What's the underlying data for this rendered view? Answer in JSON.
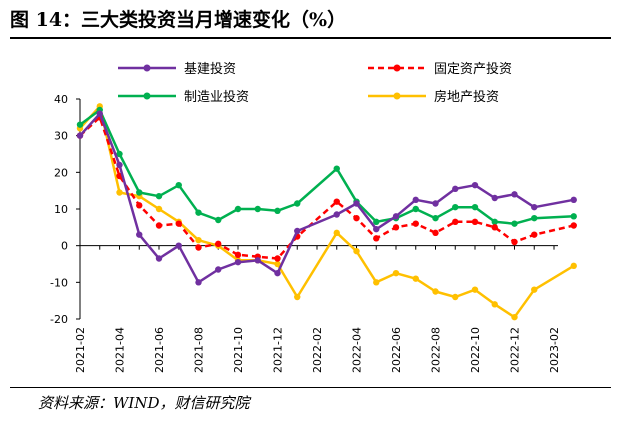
{
  "title": "图 14：三大类投资当月增速变化（%）",
  "source": "资料来源：WIND，财信研究院",
  "chart_data": {
    "type": "line",
    "x": [
      "2021-02",
      "2021-03",
      "2021-04",
      "2021-05",
      "2021-06",
      "2021-07",
      "2021-08",
      "2021-09",
      "2021-10",
      "2021-11",
      "2021-12",
      "2022-01",
      "2022-02",
      "2022-03",
      "2022-04",
      "2022-05",
      "2022-06",
      "2022-07",
      "2022-08",
      "2022-09",
      "2022-10",
      "2022-11",
      "2022-12",
      "2023-01",
      "2023-02"
    ],
    "xticks": [
      "2021-02",
      "2021-04",
      "2021-06",
      "2021-08",
      "2021-10",
      "2021-12",
      "2022-02",
      "2022-04",
      "2022-06",
      "2022-08",
      "2022-10",
      "2022-12",
      "2023-02"
    ],
    "ylim": [
      -20,
      40
    ],
    "yticks": [
      "40",
      "30",
      "20",
      "10",
      "0",
      "-10",
      "-20"
    ],
    "series": [
      {
        "name": "基建投资",
        "color": "#7030A0",
        "style": "solid",
        "points": [
          [
            0,
            30
          ],
          [
            1,
            36
          ],
          [
            2,
            22
          ],
          [
            3,
            3
          ],
          [
            4,
            -3.5
          ],
          [
            5,
            0
          ],
          [
            6,
            -10
          ],
          [
            7,
            -6.5
          ],
          [
            8,
            -4.5
          ],
          [
            9,
            -4
          ],
          [
            10,
            -7.5
          ],
          [
            11,
            4
          ],
          [
            13,
            8.5
          ],
          [
            14,
            11.5
          ],
          [
            15,
            4.5
          ],
          [
            16,
            8
          ],
          [
            17,
            12.5
          ],
          [
            18,
            11.5
          ],
          [
            19,
            15.5
          ],
          [
            20,
            16.5
          ],
          [
            21,
            13
          ],
          [
            22,
            14
          ],
          [
            23,
            10.5
          ],
          [
            25,
            12.5
          ]
        ]
      },
      {
        "name": "固定资产投资",
        "color": "#FF0000",
        "style": "dashed",
        "points": [
          [
            0,
            30
          ],
          [
            1,
            35
          ],
          [
            2,
            19
          ],
          [
            3,
            11
          ],
          [
            4,
            5.5
          ],
          [
            5,
            6
          ],
          [
            6,
            -0.5
          ],
          [
            7,
            0.5
          ],
          [
            8,
            -2.5
          ],
          [
            9,
            -3
          ],
          [
            10,
            -3.5
          ],
          [
            11,
            2.5
          ],
          [
            13,
            12
          ],
          [
            14,
            7.5
          ],
          [
            15,
            2
          ],
          [
            16,
            5
          ],
          [
            17,
            6
          ],
          [
            18,
            3.5
          ],
          [
            19,
            6.5
          ],
          [
            20,
            6.5
          ],
          [
            21,
            5
          ],
          [
            22,
            1
          ],
          [
            23,
            3
          ],
          [
            25,
            5.5
          ]
        ]
      },
      {
        "name": "制造业投资",
        "color": "#00B050",
        "style": "solid",
        "points": [
          [
            0,
            33
          ],
          [
            1,
            37
          ],
          [
            2,
            25
          ],
          [
            3,
            14.5
          ],
          [
            4,
            13.5
          ],
          [
            5,
            16.5
          ],
          [
            6,
            9
          ],
          [
            7,
            7
          ],
          [
            8,
            10
          ],
          [
            9,
            10
          ],
          [
            10,
            9.5
          ],
          [
            11,
            11.5
          ],
          [
            13,
            21
          ],
          [
            14,
            12
          ],
          [
            15,
            6.5
          ],
          [
            16,
            7.5
          ],
          [
            17,
            10
          ],
          [
            18,
            7.5
          ],
          [
            19,
            10.5
          ],
          [
            20,
            10.5
          ],
          [
            21,
            6.5
          ],
          [
            22,
            6
          ],
          [
            23,
            7.5
          ],
          [
            25,
            8
          ]
        ]
      },
      {
        "name": "房地产投资",
        "color": "#FFC000",
        "style": "solid",
        "points": [
          [
            0,
            32
          ],
          [
            1,
            38
          ],
          [
            2,
            14.5
          ],
          [
            3,
            13.5
          ],
          [
            4,
            10
          ],
          [
            5,
            6.5
          ],
          [
            6,
            1.5
          ],
          [
            7,
            0
          ],
          [
            8,
            -4
          ],
          [
            9,
            -4
          ],
          [
            10,
            -5
          ],
          [
            11,
            -14
          ],
          [
            13,
            3.5
          ],
          [
            14,
            -1.5
          ],
          [
            15,
            -10
          ],
          [
            16,
            -7.5
          ],
          [
            17,
            -9
          ],
          [
            18,
            -12.5
          ],
          [
            19,
            -14
          ],
          [
            20,
            -12
          ],
          [
            21,
            -16
          ],
          [
            22,
            -19.5
          ],
          [
            23,
            -12
          ],
          [
            25,
            -5.5
          ]
        ]
      }
    ]
  }
}
